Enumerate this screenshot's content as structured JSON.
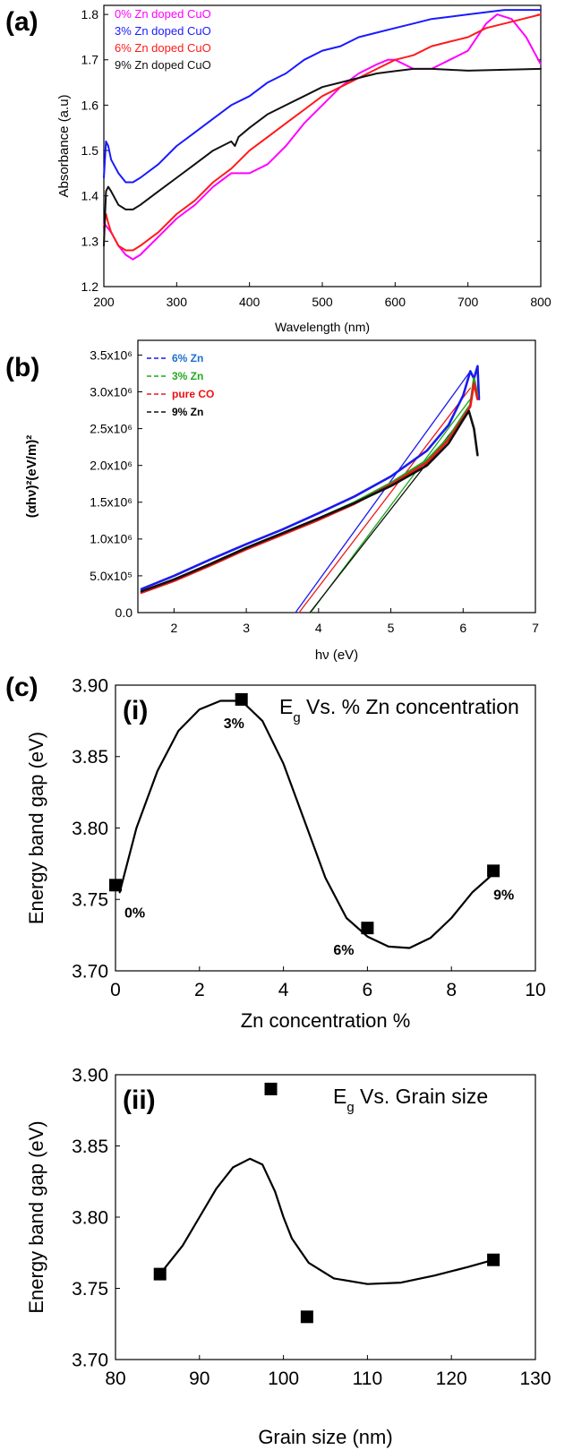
{
  "chart_data": [
    {
      "panel_label": "(a)",
      "type": "line",
      "xlabel": "Wavelength (nm)",
      "ylabel": "Absorbance (a.u)",
      "xlim": [
        200,
        800
      ],
      "ylim": [
        1.2,
        1.82
      ],
      "xticks": [
        "200",
        "300",
        "400",
        "500",
        "600",
        "700",
        "800"
      ],
      "yticks": [
        "1.2",
        "1.3",
        "1.4",
        "1.5",
        "1.6",
        "1.7",
        "1.8"
      ],
      "legend_position": "top-left",
      "series": [
        {
          "name": "0% Zn doped CuO",
          "color": "#ff00ff",
          "x": [
            200,
            205,
            210,
            220,
            230,
            240,
            250,
            275,
            300,
            325,
            350,
            375,
            400,
            425,
            450,
            475,
            500,
            525,
            550,
            575,
            590,
            600,
            625,
            650,
            675,
            700,
            725,
            740,
            760,
            780,
            800
          ],
          "y": [
            1.34,
            1.33,
            1.32,
            1.29,
            1.27,
            1.26,
            1.27,
            1.31,
            1.35,
            1.38,
            1.42,
            1.45,
            1.45,
            1.47,
            1.51,
            1.56,
            1.6,
            1.64,
            1.67,
            1.69,
            1.7,
            1.7,
            1.68,
            1.68,
            1.7,
            1.72,
            1.78,
            1.8,
            1.79,
            1.75,
            1.69
          ]
        },
        {
          "name": "3% Zn doped CuO",
          "color": "#1a1aff",
          "x": [
            200,
            203,
            206,
            210,
            220,
            230,
            240,
            250,
            275,
            300,
            325,
            350,
            375,
            400,
            425,
            450,
            475,
            500,
            525,
            550,
            575,
            600,
            625,
            650,
            675,
            700,
            725,
            750,
            775,
            800
          ],
          "y": [
            1.44,
            1.52,
            1.51,
            1.48,
            1.45,
            1.43,
            1.43,
            1.44,
            1.47,
            1.51,
            1.54,
            1.57,
            1.6,
            1.62,
            1.65,
            1.67,
            1.7,
            1.72,
            1.73,
            1.75,
            1.76,
            1.77,
            1.78,
            1.79,
            1.795,
            1.8,
            1.805,
            1.81,
            1.81,
            1.81
          ]
        },
        {
          "name": "6% Zn doped CuO",
          "color": "#ff1a1a",
          "x": [
            200,
            203,
            206,
            210,
            220,
            230,
            240,
            250,
            275,
            300,
            325,
            350,
            375,
            400,
            425,
            450,
            475,
            500,
            525,
            550,
            575,
            600,
            625,
            650,
            675,
            700,
            725,
            750,
            775,
            800
          ],
          "y": [
            1.33,
            1.36,
            1.34,
            1.32,
            1.29,
            1.28,
            1.28,
            1.29,
            1.32,
            1.36,
            1.39,
            1.43,
            1.46,
            1.5,
            1.53,
            1.56,
            1.59,
            1.62,
            1.64,
            1.66,
            1.68,
            1.7,
            1.71,
            1.73,
            1.74,
            1.75,
            1.77,
            1.78,
            1.79,
            1.8
          ]
        },
        {
          "name": "9% Zn doped CuO",
          "color": "#111111",
          "x": [
            200,
            203,
            206,
            210,
            220,
            230,
            240,
            250,
            275,
            300,
            325,
            350,
            375,
            380,
            385,
            400,
            425,
            450,
            475,
            500,
            525,
            550,
            575,
            600,
            625,
            650,
            675,
            700,
            725,
            750,
            775,
            800
          ],
          "y": [
            1.29,
            1.41,
            1.42,
            1.41,
            1.38,
            1.37,
            1.37,
            1.38,
            1.41,
            1.44,
            1.47,
            1.5,
            1.52,
            1.51,
            1.53,
            1.55,
            1.58,
            1.6,
            1.62,
            1.64,
            1.65,
            1.66,
            1.67,
            1.675,
            1.68,
            1.68,
            1.678,
            1.676,
            1.677,
            1.678,
            1.679,
            1.68
          ]
        }
      ]
    },
    {
      "panel_label": "(b)",
      "type": "line",
      "xlabel": "hν (eV)",
      "ylabel": "(αhν)²(eV/m)²",
      "xlim": [
        1.5,
        7
      ],
      "ylim": [
        0,
        3.7
      ],
      "xticks": [
        "2",
        "3",
        "4",
        "5",
        "6",
        "7"
      ],
      "yticks": [
        "0.0",
        "5.0x10⁵",
        "1.0x10⁶",
        "1.5x10⁶",
        "2.0x10⁶",
        "2.5x10⁶",
        "3.0x10⁶",
        "3.5x10⁶"
      ],
      "legend_position": "top-left",
      "series": [
        {
          "name": "6% Zn",
          "color": "#1a1aee",
          "label_color": "#1f6fd1",
          "x": [
            1.55,
            2,
            2.5,
            3,
            3.5,
            4,
            4.5,
            5,
            5.5,
            5.8,
            6,
            6.1,
            6.15,
            6.2,
            6.22
          ],
          "y": [
            0.32,
            0.5,
            0.72,
            0.93,
            1.13,
            1.35,
            1.58,
            1.85,
            2.2,
            2.55,
            2.95,
            3.28,
            3.18,
            3.35,
            2.9
          ]
        },
        {
          "name": "3% Zn",
          "color": "#1aa81a",
          "label_color": "#22aa22",
          "x": [
            1.55,
            2,
            2.5,
            3,
            3.5,
            4,
            4.5,
            5,
            5.5,
            5.8,
            6,
            6.1,
            6.15,
            6.2
          ],
          "y": [
            0.28,
            0.44,
            0.66,
            0.88,
            1.08,
            1.28,
            1.5,
            1.76,
            2.07,
            2.38,
            2.68,
            2.82,
            3.18,
            2.95
          ]
        },
        {
          "name": "pure CO",
          "color": "#ee1a1a",
          "label_color": "#ee1111",
          "x": [
            1.55,
            2,
            2.5,
            3,
            3.5,
            4,
            4.5,
            5,
            5.5,
            5.8,
            6,
            6.1,
            6.15,
            6.2
          ],
          "y": [
            0.27,
            0.43,
            0.64,
            0.86,
            1.06,
            1.26,
            1.48,
            1.74,
            2.04,
            2.35,
            2.65,
            2.8,
            3.12,
            2.9
          ]
        },
        {
          "name": "9% Zn",
          "color": "#111111",
          "label_color": "#000000",
          "x": [
            1.55,
            2,
            2.5,
            3,
            3.5,
            4,
            4.5,
            5,
            5.5,
            5.8,
            6,
            6.08,
            6.15,
            6.2
          ],
          "y": [
            0.29,
            0.45,
            0.66,
            0.88,
            1.08,
            1.28,
            1.49,
            1.72,
            2,
            2.3,
            2.62,
            2.74,
            2.5,
            2.14
          ]
        }
      ],
      "fit_lines": [
        {
          "color": "#1a1aee",
          "x": [
            3.68,
            6.1
          ],
          "y": [
            0,
            3.28
          ]
        },
        {
          "color": "#ee1a1a",
          "x": [
            3.73,
            6.1
          ],
          "y": [
            0,
            3.05
          ]
        },
        {
          "color": "#1aa81a",
          "x": [
            3.89,
            6.1
          ],
          "y": [
            0,
            2.9
          ]
        },
        {
          "color": "#111111",
          "x": [
            3.88,
            6.05
          ],
          "y": [
            0,
            2.72
          ]
        }
      ]
    },
    {
      "panel_label": "(c)",
      "sub_label": "(i)",
      "type": "scatter",
      "title": "E_g Vs. % Zn concentration",
      "xlabel": "Zn concentration %",
      "ylabel": "Energy band gap (eV)",
      "xlim": [
        0,
        10
      ],
      "ylim": [
        3.7,
        3.9
      ],
      "xticks": [
        "0",
        "2",
        "4",
        "6",
        "8",
        "10"
      ],
      "yticks": [
        "3.70",
        "3.75",
        "3.80",
        "3.85",
        "3.90"
      ],
      "points": {
        "x": [
          0,
          3,
          6,
          9
        ],
        "y": [
          3.76,
          3.89,
          3.73,
          3.77
        ]
      },
      "point_labels": [
        "0%",
        "3%",
        "6%",
        "9%"
      ],
      "curve": {
        "x": [
          0.1,
          0.5,
          1,
          1.5,
          2,
          2.5,
          3,
          3.5,
          4,
          4.5,
          5,
          5.5,
          6,
          6.5,
          7,
          7.5,
          8,
          8.5,
          9
        ],
        "y": [
          3.755,
          3.8,
          3.84,
          3.868,
          3.883,
          3.889,
          3.889,
          3.875,
          3.845,
          3.805,
          3.765,
          3.737,
          3.724,
          3.717,
          3.716,
          3.723,
          3.737,
          3.755,
          3.768
        ]
      }
    },
    {
      "sub_label": "(ii)",
      "type": "scatter",
      "title": "E_g Vs. Grain size",
      "xlabel": "Grain size (nm)",
      "ylabel": "Energy band gap (eV)",
      "xlim": [
        80,
        130
      ],
      "ylim": [
        3.7,
        3.9
      ],
      "xticks": [
        "80",
        "90",
        "100",
        "110",
        "120",
        "130"
      ],
      "yticks": [
        "3.70",
        "3.75",
        "3.80",
        "3.85",
        "3.90"
      ],
      "points": {
        "x": [
          85.3,
          98.5,
          102.8,
          125
        ],
        "y": [
          3.76,
          3.89,
          3.73,
          3.77
        ]
      },
      "curve": {
        "x": [
          85.3,
          88,
          90,
          92,
          94,
          96,
          97.5,
          99,
          100,
          101,
          103,
          106,
          110,
          114,
          118,
          122,
          125
        ],
        "y": [
          3.76,
          3.78,
          3.8,
          3.82,
          3.835,
          3.841,
          3.837,
          3.818,
          3.8,
          3.785,
          3.768,
          3.757,
          3.753,
          3.754,
          3.759,
          3.765,
          3.77
        ]
      }
    }
  ]
}
